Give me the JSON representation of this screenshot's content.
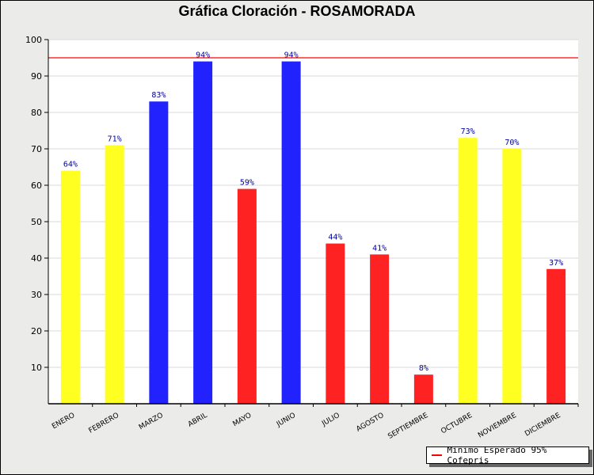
{
  "chart_data": {
    "type": "bar",
    "title": "Gráfica Cloración - ROSAMORADA",
    "xlabel": "",
    "ylabel": "",
    "ylim": [
      0,
      100
    ],
    "yticks": [
      10,
      20,
      30,
      40,
      50,
      60,
      70,
      80,
      90,
      100
    ],
    "grid": true,
    "categories": [
      "ENERO",
      "FEBRERO",
      "MARZO",
      "ABRIL",
      "MAYO",
      "JUNIO",
      "JULIO",
      "AGOSTO",
      "SEPTIEMBRE",
      "OCTUBRE",
      "NOVIEMBRE",
      "DICIEMBRE"
    ],
    "values": [
      64,
      71,
      83,
      94,
      59,
      94,
      44,
      41,
      8,
      73,
      70,
      37
    ],
    "data_labels": [
      "64%",
      "71%",
      "83%",
      "94%",
      "59%",
      "94%",
      "44%",
      "41%",
      "8%",
      "73%",
      "70%",
      "37%"
    ],
    "bar_colors": [
      "#ffff22",
      "#ffff22",
      "#2222ff",
      "#2222ff",
      "#ff2222",
      "#2222ff",
      "#ff2222",
      "#ff2222",
      "#ff2222",
      "#ffff22",
      "#ffff22",
      "#ff2222"
    ],
    "reference_line": {
      "value": 95,
      "label": "Minimo Esperado 95% Cofepris",
      "color": "#ff0000"
    },
    "legend_position": "bottom-right",
    "label_color": "#000099"
  }
}
